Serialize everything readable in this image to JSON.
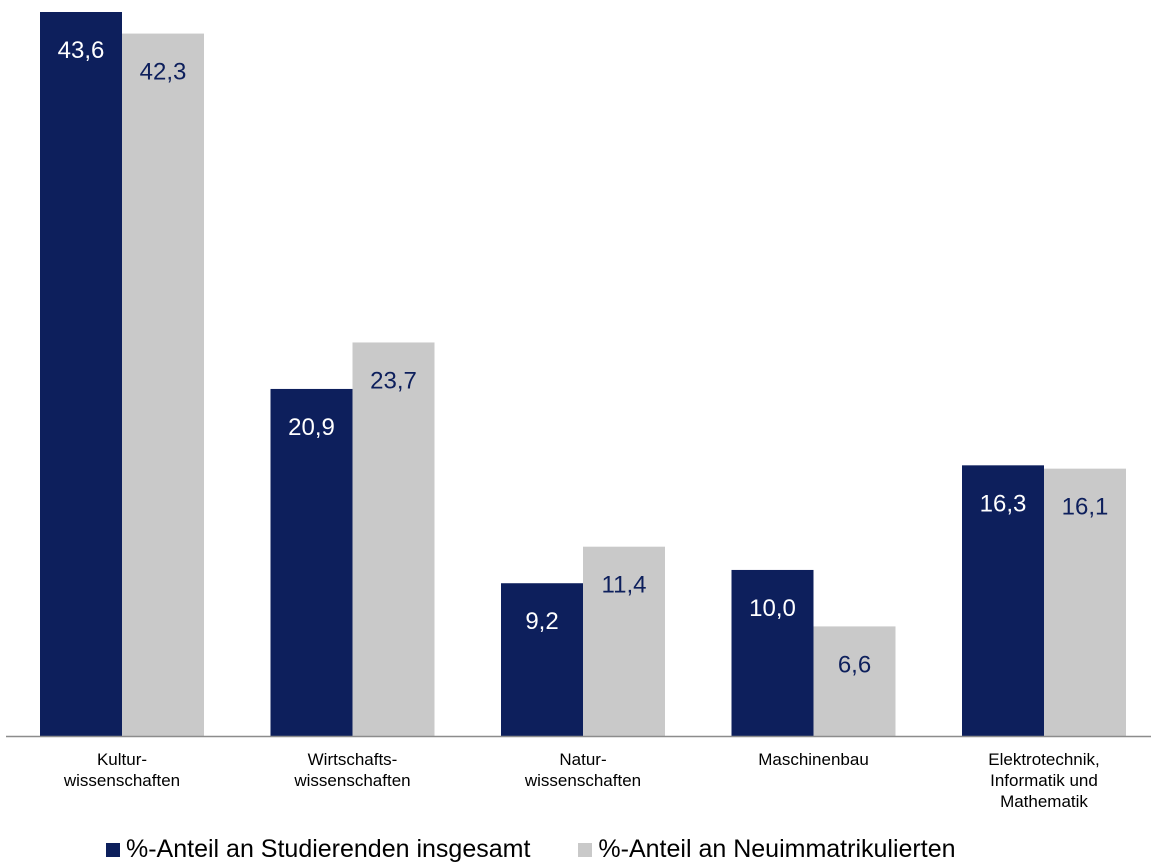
{
  "chart_data": {
    "type": "bar",
    "categories": [
      [
        "Kultur-",
        "wissenschaften"
      ],
      [
        "Wirtschafts-",
        "wissenschaften"
      ],
      [
        "Natur-",
        "wissenschaften"
      ],
      [
        "Maschinenbau"
      ],
      [
        "Elektrotechnik,",
        "Informatik und",
        "Mathematik"
      ]
    ],
    "series": [
      {
        "name": "%-Anteil an Studierenden insgesamt",
        "color": "#0d1f5c",
        "label_color": "#ffffff",
        "values": [
          43.6,
          20.9,
          9.2,
          10.0,
          16.3
        ],
        "labels": [
          "43,6",
          "20,9",
          "9,2",
          "10,0",
          "16,3"
        ]
      },
      {
        "name": "%-Anteil an Neuimmatrikulierten",
        "color": "#c9c9c9",
        "label_color": "#0d1f5c",
        "values": [
          42.3,
          23.7,
          11.4,
          6.6,
          16.1
        ],
        "labels": [
          "42,3",
          "23,7",
          "11,4",
          "6,6",
          "16,1"
        ]
      }
    ],
    "ylim": [
      0,
      44
    ],
    "grid": false,
    "legend_position": "bottom"
  }
}
